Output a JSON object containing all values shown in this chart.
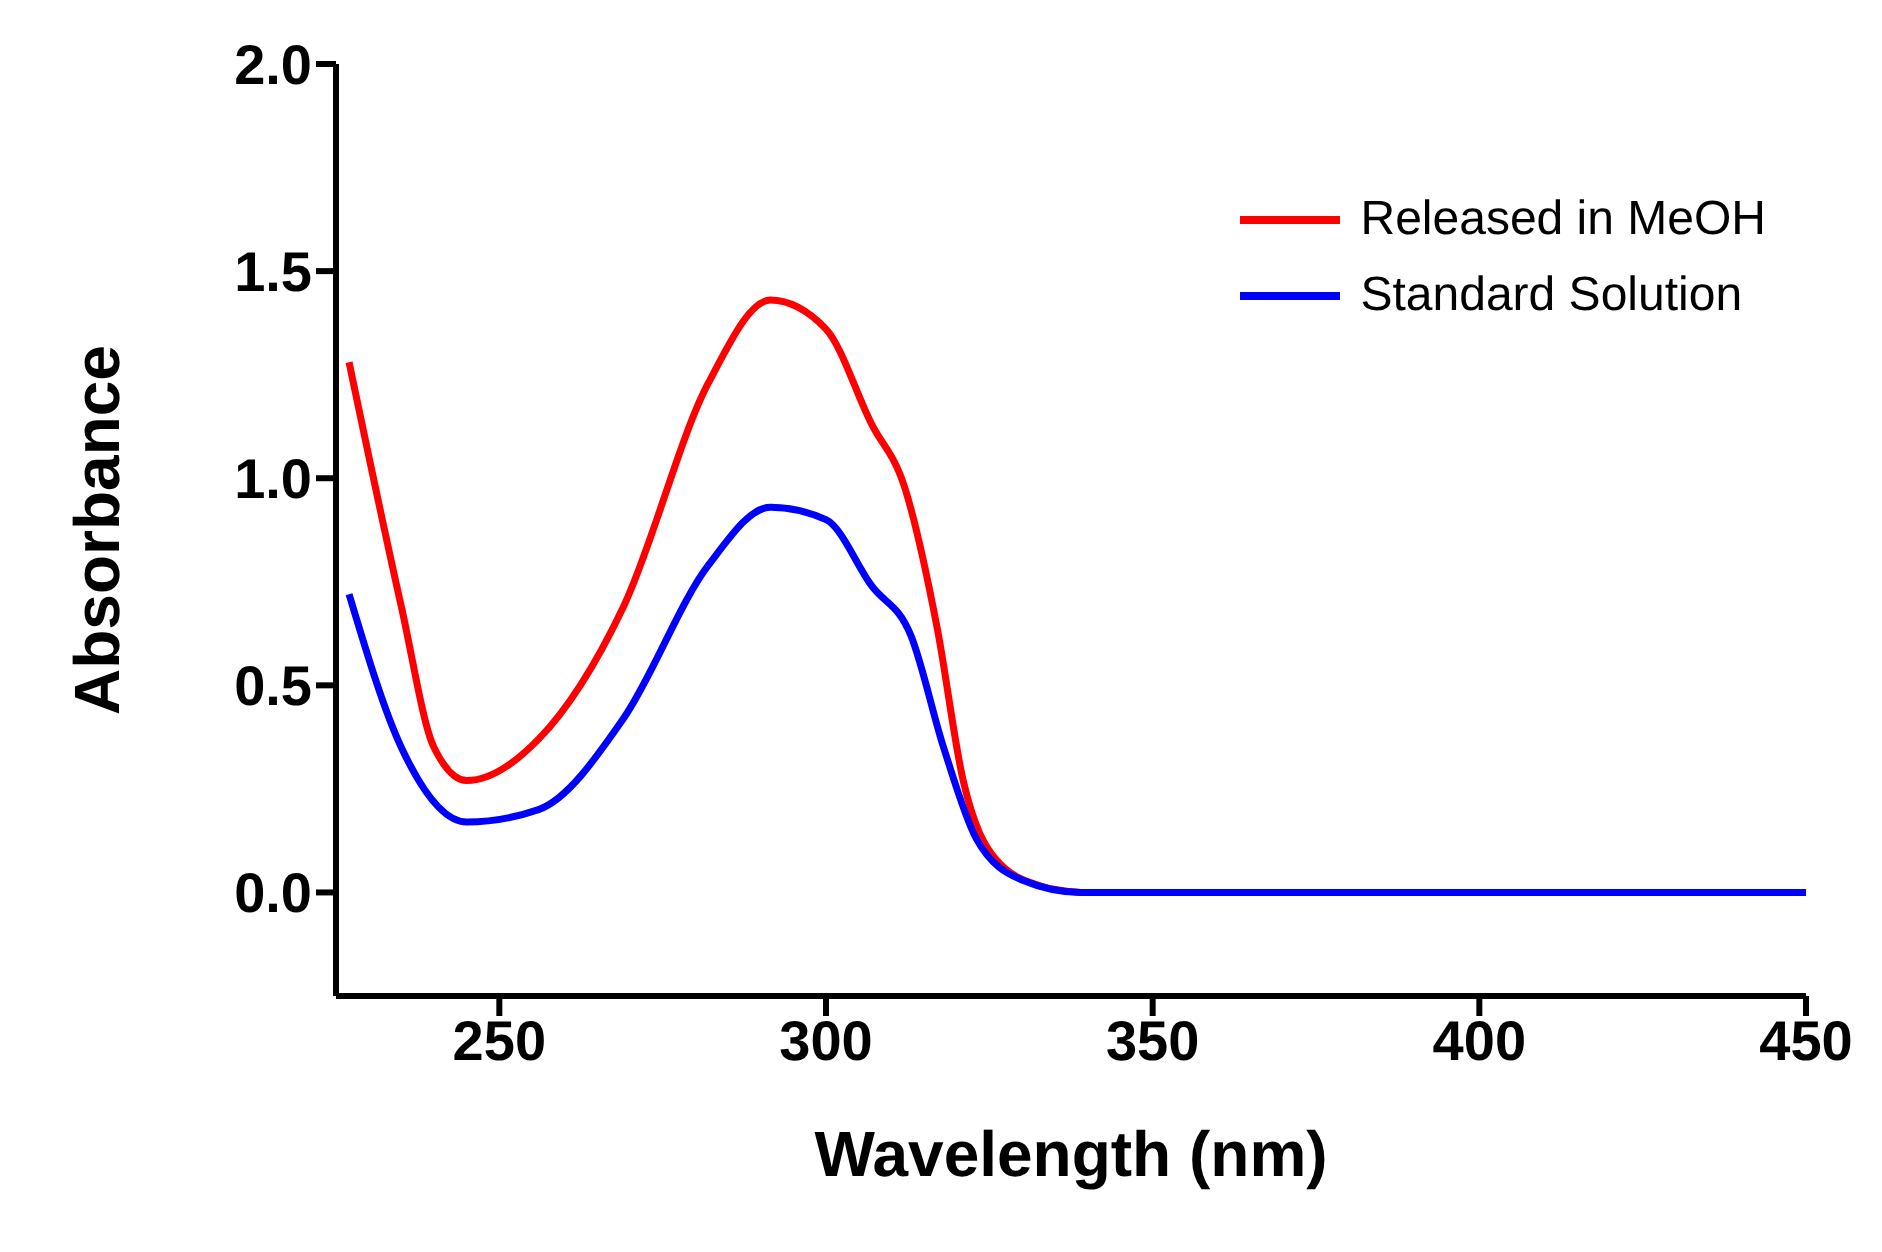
{
  "chart_data": {
    "type": "line",
    "xlabel": "Wavelength (nm)",
    "ylabel": "Absorbance",
    "xlim": [
      225,
      450
    ],
    "xticks": [
      250,
      300,
      350,
      400,
      450
    ],
    "ylim": [
      -0.25,
      2.0
    ],
    "yticks": [
      {
        "value": 0,
        "label": "0.0"
      },
      {
        "value": 0.5,
        "label": "0.5"
      },
      {
        "value": 1,
        "label": "1.0"
      },
      {
        "value": 1.5,
        "label": "1.5"
      },
      {
        "value": 2,
        "label": "2.0"
      }
    ],
    "grid": false,
    "legend": "top right",
    "marker": "none",
    "line_style": "solid",
    "series": [
      {
        "name": "Released in MeOH",
        "color": "#ff0000",
        "x": [
          227,
          235,
          240,
          245,
          256,
          269,
          282,
          291.5,
          300,
          307,
          312,
          317,
          321,
          326,
          333,
          339
        ],
        "values": [
          1.28,
          0.69,
          0.35,
          0.27,
          0.37,
          0.69,
          1.23,
          1.43,
          1.36,
          1.13,
          0.98,
          0.64,
          0.27,
          0.08,
          0.015,
          0
        ]
      },
      {
        "name": "Standard Solution",
        "color": "#0000ff",
        "x": [
          227,
          235,
          245,
          256,
          269,
          282,
          291.5,
          300,
          307,
          313,
          318,
          323,
          330,
          339,
          360,
          400,
          450
        ],
        "values": [
          0.72,
          0.35,
          0.17,
          0.2,
          0.42,
          0.79,
          0.93,
          0.9,
          0.74,
          0.62,
          0.35,
          0.13,
          0.03,
          0,
          0,
          0,
          0
        ]
      }
    ]
  }
}
